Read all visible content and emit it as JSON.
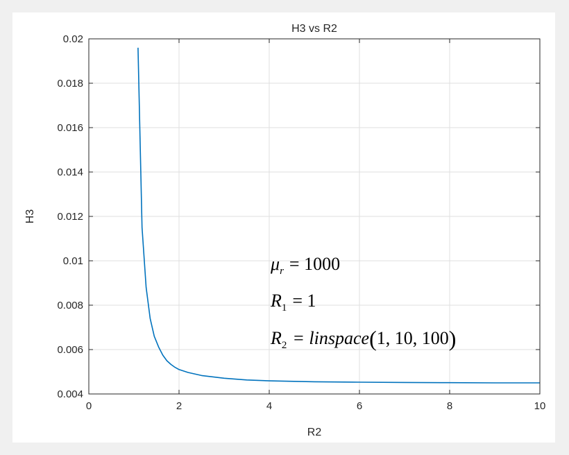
{
  "chart_data": {
    "type": "line",
    "title": "H3 vs R2",
    "xlabel": "R2",
    "ylabel": "H3",
    "xlim": [
      0,
      10
    ],
    "ylim": [
      0.004,
      0.02
    ],
    "xticks": [
      0,
      2,
      4,
      6,
      8,
      10
    ],
    "xtick_labels": [
      "0",
      "2",
      "4",
      "6",
      "8",
      "10"
    ],
    "yticks": [
      0.004,
      0.006,
      0.008,
      0.01,
      0.012,
      0.014,
      0.016,
      0.018,
      0.02
    ],
    "ytick_labels": [
      "0.004",
      "0.006",
      "0.008",
      "0.01",
      "0.012",
      "0.014",
      "0.016",
      "0.018",
      "0.02"
    ],
    "grid": true,
    "series": [
      {
        "color": "#0072bd",
        "x": [
          1.09,
          1.18,
          1.27,
          1.36,
          1.45,
          1.55,
          1.64,
          1.73,
          1.82,
          1.91,
          2.0,
          2.2,
          2.5,
          3.0,
          3.5,
          4.0,
          5.0,
          6.0,
          7.0,
          8.0,
          9.0,
          10.0
        ],
        "y": [
          0.0196,
          0.0115,
          0.0088,
          0.0074,
          0.0066,
          0.0061,
          0.00575,
          0.0055,
          0.00533,
          0.0052,
          0.0051,
          0.00497,
          0.00483,
          0.00471,
          0.00463,
          0.00459,
          0.00455,
          0.00453,
          0.00452,
          0.00451,
          0.0045,
          0.0045
        ]
      }
    ],
    "annotation": {
      "line1": {
        "var": "μ",
        "sub": "r",
        "rhs": "= 1000"
      },
      "line2": {
        "var": "R",
        "sub": "1",
        "rhs": "= 1"
      },
      "line3": {
        "var": "R",
        "sub": "2",
        "rhs_func": "= linspace",
        "args": "1,  10,  100"
      }
    }
  }
}
